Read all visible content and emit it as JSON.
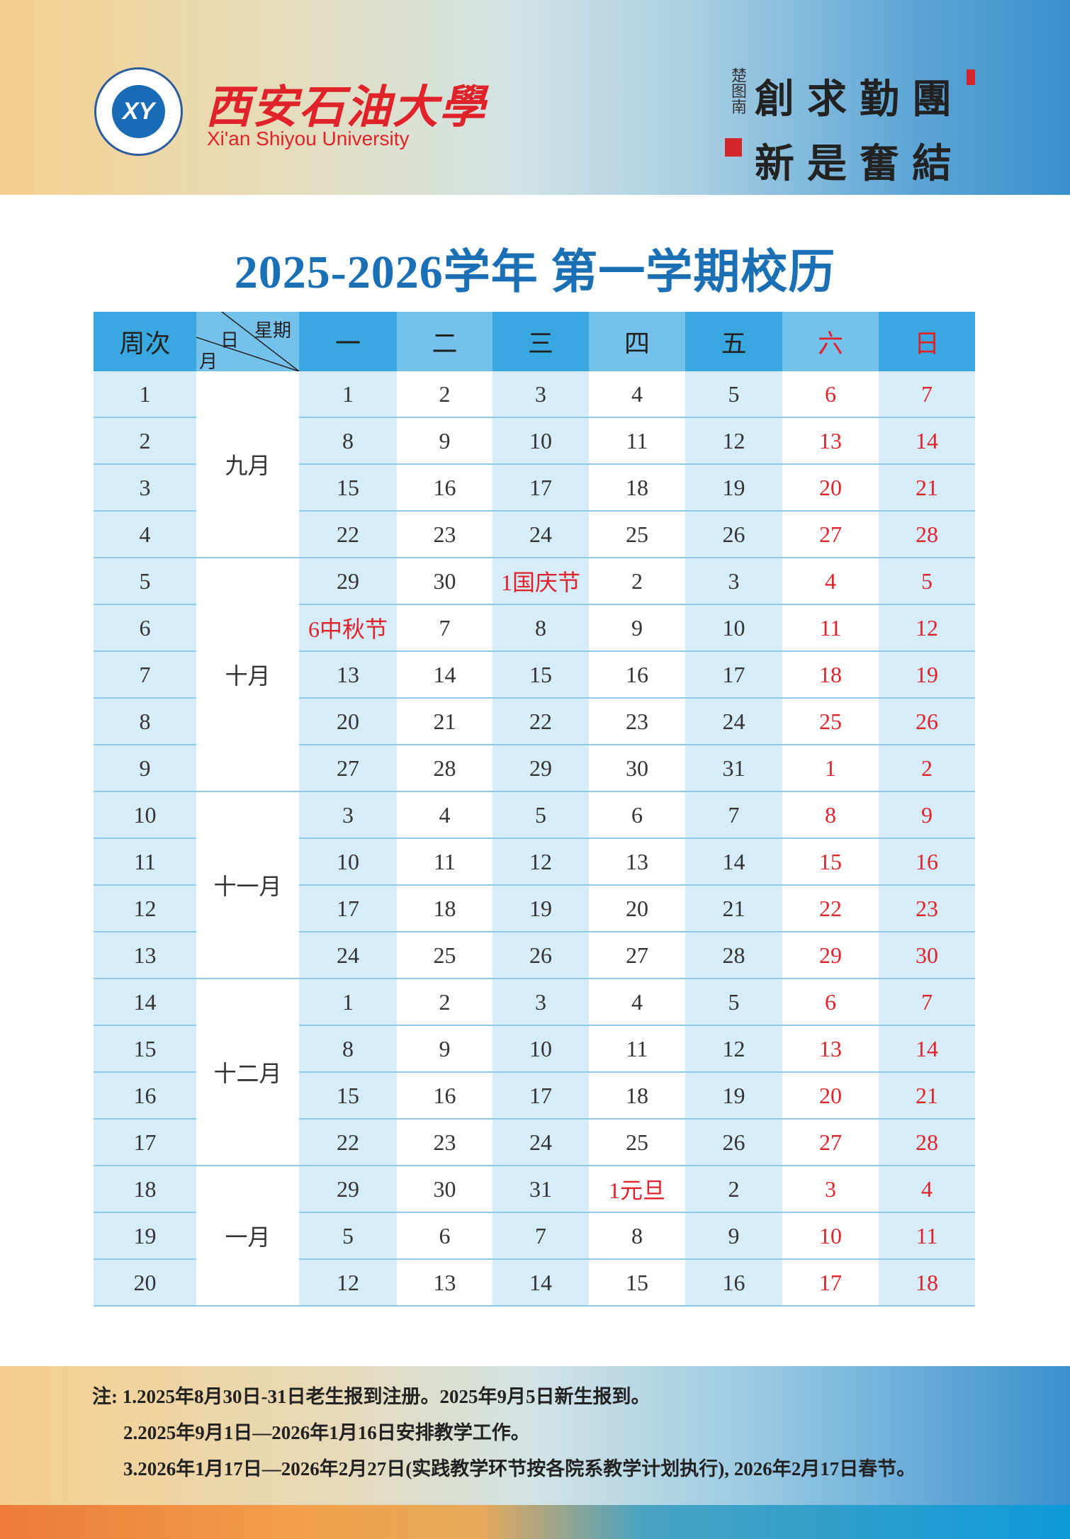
{
  "header": {
    "university_cn": "西安石油大學",
    "university_en": "Xi'an Shiyou University",
    "emblem_text": "XY",
    "motto_top": [
      "創",
      "求",
      "勤",
      "團"
    ],
    "motto_bottom": [
      "新",
      "是",
      "奮",
      "結"
    ],
    "motto_signature": "楚图南"
  },
  "title": "2025-2026学年  第一学期校历",
  "table": {
    "week_header": "周次",
    "corner": {
      "weekday": "星期",
      "day": "日",
      "month": "月"
    },
    "weekdays": [
      "一",
      "二",
      "三",
      "四",
      "五",
      "六",
      "日"
    ],
    "weekend_color": "#e0232a",
    "months": [
      {
        "label": "九月",
        "weeks": 4
      },
      {
        "label": "十月",
        "weeks": 5
      },
      {
        "label": "十一月",
        "weeks": 4
      },
      {
        "label": "十二月",
        "weeks": 4
      },
      {
        "label": "一月",
        "weeks": 3
      }
    ],
    "holidays": [
      "1国庆节",
      "6中秋节",
      "1元旦"
    ],
    "rows": [
      {
        "week": "1",
        "days": [
          "1",
          "2",
          "3",
          "4",
          "5",
          "6",
          "7"
        ]
      },
      {
        "week": "2",
        "days": [
          "8",
          "9",
          "10",
          "11",
          "12",
          "13",
          "14"
        ]
      },
      {
        "week": "3",
        "days": [
          "15",
          "16",
          "17",
          "18",
          "19",
          "20",
          "21"
        ]
      },
      {
        "week": "4",
        "days": [
          "22",
          "23",
          "24",
          "25",
          "26",
          "27",
          "28"
        ]
      },
      {
        "week": "5",
        "days": [
          "29",
          "30",
          "1国庆节",
          "2",
          "3",
          "4",
          "5"
        ]
      },
      {
        "week": "6",
        "days": [
          "6中秋节",
          "7",
          "8",
          "9",
          "10",
          "11",
          "12"
        ]
      },
      {
        "week": "7",
        "days": [
          "13",
          "14",
          "15",
          "16",
          "17",
          "18",
          "19"
        ]
      },
      {
        "week": "8",
        "days": [
          "20",
          "21",
          "22",
          "23",
          "24",
          "25",
          "26"
        ]
      },
      {
        "week": "9",
        "days": [
          "27",
          "28",
          "29",
          "30",
          "31",
          "1",
          "2"
        ]
      },
      {
        "week": "10",
        "days": [
          "3",
          "4",
          "5",
          "6",
          "7",
          "8",
          "9"
        ]
      },
      {
        "week": "11",
        "days": [
          "10",
          "11",
          "12",
          "13",
          "14",
          "15",
          "16"
        ]
      },
      {
        "week": "12",
        "days": [
          "17",
          "18",
          "19",
          "20",
          "21",
          "22",
          "23"
        ]
      },
      {
        "week": "13",
        "days": [
          "24",
          "25",
          "26",
          "27",
          "28",
          "29",
          "30"
        ]
      },
      {
        "week": "14",
        "days": [
          "1",
          "2",
          "3",
          "4",
          "5",
          "6",
          "7"
        ]
      },
      {
        "week": "15",
        "days": [
          "8",
          "9",
          "10",
          "11",
          "12",
          "13",
          "14"
        ]
      },
      {
        "week": "16",
        "days": [
          "15",
          "16",
          "17",
          "18",
          "19",
          "20",
          "21"
        ]
      },
      {
        "week": "17",
        "days": [
          "22",
          "23",
          "24",
          "25",
          "26",
          "27",
          "28"
        ]
      },
      {
        "week": "18",
        "days": [
          "29",
          "30",
          "31",
          "1元旦",
          "2",
          "3",
          "4"
        ]
      },
      {
        "week": "19",
        "days": [
          "5",
          "6",
          "7",
          "8",
          "9",
          "10",
          "11"
        ]
      },
      {
        "week": "20",
        "days": [
          "12",
          "13",
          "14",
          "15",
          "16",
          "17",
          "18"
        ]
      }
    ]
  },
  "notes": [
    "注: 1.2025年8月30日-31日老生报到注册。2025年9月5日新生报到。",
    "2.2025年9月1日—2026年1月16日安排教学工作。",
    "3.2026年1月17日—2026年2月27日(实践教学环节按各院系教学计划执行), 2026年2月17日春节。"
  ]
}
